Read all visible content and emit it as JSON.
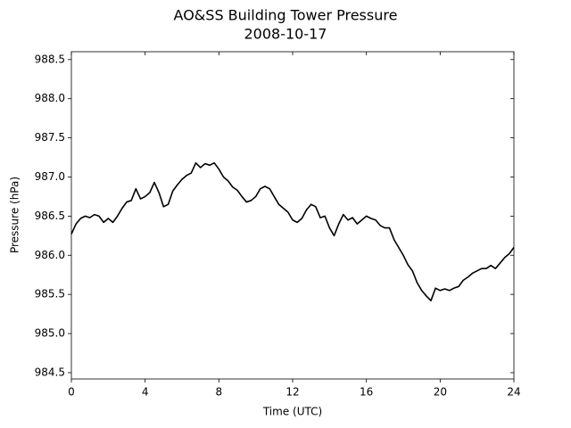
{
  "chart_data": {
    "type": "line",
    "title": "AO&SS Building Tower Pressure",
    "subtitle": "2008-10-17",
    "x_label": "Time (UTC)",
    "y_label": "Pressure (hPa)",
    "x": [
      0,
      0.25,
      0.5,
      0.75,
      1,
      1.25,
      1.5,
      1.75,
      2,
      2.25,
      2.5,
      2.75,
      3,
      3.25,
      3.5,
      3.75,
      4,
      4.25,
      4.5,
      4.75,
      5,
      5.25,
      5.5,
      5.75,
      6,
      6.25,
      6.5,
      6.75,
      7,
      7.25,
      7.5,
      7.75,
      8,
      8.25,
      8.5,
      8.75,
      9,
      9.25,
      9.5,
      9.75,
      10,
      10.25,
      10.5,
      10.75,
      11,
      11.25,
      11.5,
      11.75,
      12,
      12.25,
      12.5,
      12.75,
      13,
      13.25,
      13.5,
      13.75,
      14,
      14.25,
      14.5,
      14.75,
      15,
      15.25,
      15.5,
      15.75,
      16,
      16.25,
      16.5,
      16.75,
      17,
      17.25,
      17.5,
      17.75,
      18,
      18.25,
      18.5,
      18.75,
      19,
      19.25,
      19.5,
      19.75,
      20,
      20.25,
      20.5,
      20.75,
      21,
      21.25,
      21.5,
      21.75,
      22,
      22.25,
      22.5,
      22.75,
      23,
      23.25,
      23.5,
      23.75,
      24
    ],
    "series": [
      {
        "name": "Pressure",
        "color": "#000000",
        "values": [
          986.27,
          986.4,
          986.47,
          986.5,
          986.48,
          986.52,
          986.5,
          986.42,
          986.47,
          986.42,
          986.5,
          986.6,
          986.68,
          986.7,
          986.85,
          986.72,
          986.75,
          986.8,
          986.93,
          986.8,
          986.62,
          986.65,
          986.82,
          986.9,
          986.97,
          987.02,
          987.05,
          987.18,
          987.12,
          987.17,
          987.15,
          987.18,
          987.1,
          987.0,
          986.95,
          986.87,
          986.83,
          986.75,
          986.68,
          986.7,
          986.75,
          986.85,
          986.88,
          986.85,
          986.75,
          986.65,
          986.6,
          986.55,
          986.45,
          986.42,
          986.47,
          986.58,
          986.65,
          986.62,
          986.48,
          986.5,
          986.35,
          986.25,
          986.4,
          986.52,
          986.45,
          986.48,
          986.4,
          986.45,
          986.5,
          986.47,
          986.45,
          986.38,
          986.35,
          986.35,
          986.2,
          986.1,
          986.0,
          985.88,
          985.8,
          985.65,
          985.55,
          985.48,
          985.42,
          985.58,
          985.55,
          985.57,
          985.55,
          985.58,
          985.6,
          985.68,
          985.72,
          985.77,
          985.8,
          985.83,
          985.83,
          985.87,
          985.83,
          985.9,
          985.97,
          986.02,
          986.1
        ]
      }
    ],
    "xlim": [
      0,
      24
    ],
    "xticks": [
      0,
      4,
      8,
      12,
      16,
      20,
      24
    ],
    "ylim": [
      984.42,
      988.6
    ],
    "yticks": [
      984.5,
      {
        "value": 985,
        "label": "985.0"
      },
      985.5,
      {
        "value": 986,
        "label": "986.0"
      },
      986.5,
      {
        "value": 987,
        "label": "987.0"
      },
      987.5,
      {
        "value": 988,
        "label": "988.0"
      },
      988.5
    ],
    "grid": false
  }
}
